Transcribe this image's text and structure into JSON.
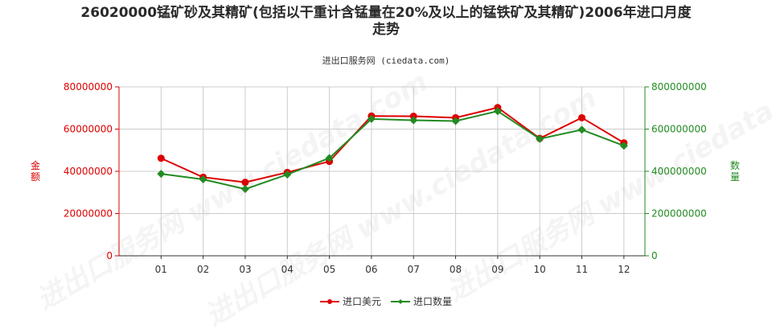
{
  "title_line1": "26020000锰矿砂及其精矿(包括以干重计含锰量在20%及以上的锰铁矿及其精矿)2006年进口月度",
  "title_line2": "走势",
  "subtitle": "进出口服务网 (ciedata.com)",
  "watermark": "进出口服务网 www.ciedata.com",
  "colors": {
    "left_axis": "#dd0000",
    "right_axis": "#228b22",
    "grid": "#cccccc"
  },
  "chart_data": {
    "type": "line",
    "categories": [
      "01",
      "02",
      "03",
      "04",
      "05",
      "06",
      "07",
      "08",
      "09",
      "10",
      "11",
      "12"
    ],
    "y_left": {
      "label": "金额",
      "ylim": [
        0,
        80000000
      ],
      "ticks": [
        "0",
        "20000000",
        "40000000",
        "60000000",
        "80000000"
      ]
    },
    "y_right": {
      "label": "数量",
      "ylim": [
        0,
        800000000
      ],
      "ticks": [
        "0",
        "200000000",
        "400000000",
        "600000000",
        "800000000"
      ]
    },
    "series": [
      {
        "name": "进口美元",
        "axis": "left",
        "color": "#dd0000",
        "values": [
          46200000,
          37200000,
          34800000,
          39500000,
          44700000,
          66200000,
          66100000,
          65400000,
          70200000,
          55600000,
          65400000,
          53500000
        ]
      },
      {
        "name": "进口数量",
        "axis": "right",
        "color": "#228b22",
        "values": [
          388000000,
          362000000,
          316000000,
          385000000,
          463000000,
          648000000,
          642000000,
          638000000,
          685000000,
          554000000,
          597000000,
          521000000
        ]
      }
    ],
    "grid": true,
    "legend": "bottom-center"
  }
}
